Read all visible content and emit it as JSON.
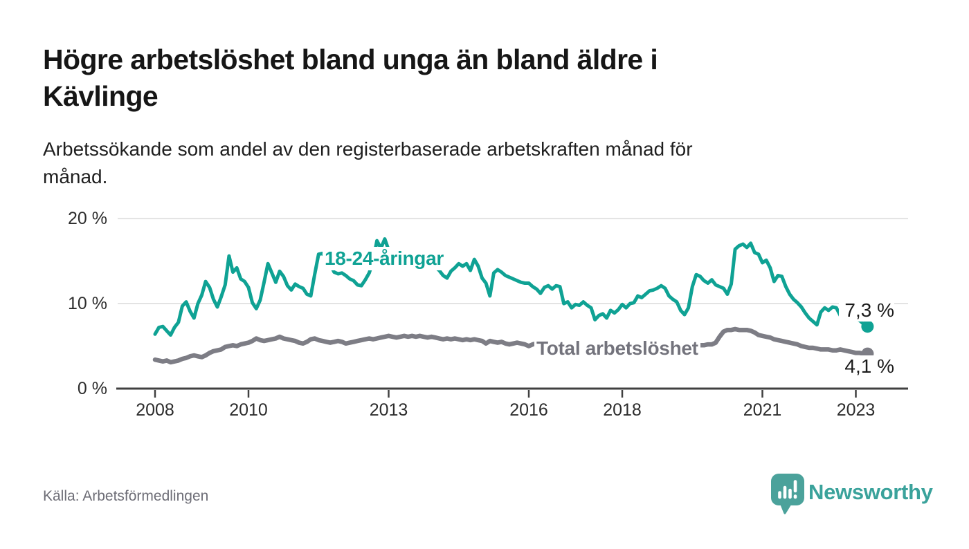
{
  "header": {
    "title_lines": [
      "Högre arbetslöshet bland unga än bland äldre i",
      "Kävlinge"
    ],
    "subtitle_lines": [
      "Arbetssökande som andel av den registerbaserade arbetskraften månad för",
      "månad."
    ]
  },
  "footer": {
    "source": "Källa: Arbetsförmedlingen",
    "brand_name": "Newsworthy"
  },
  "colors": {
    "youth_line": "#0fa294",
    "total_line": "#7d7d85",
    "total_label": "#73737c",
    "grid": "#e3e3e3",
    "axis": "#404040",
    "logo": "#4ba29b"
  },
  "chart_data": {
    "type": "line",
    "title": "Högre arbetslöshet bland unga än bland äldre i Kävlinge",
    "subtitle": "Arbetssökande som andel av den registerbaserade arbetskraften månad för månad.",
    "source": "Källa: Arbetsförmedlingen",
    "unit": "%",
    "x_start": "2008-01",
    "x_end": "2023-04",
    "x_interval": "monthly",
    "x_ticks": [
      2008,
      2010,
      2013,
      2016,
      2018,
      2021,
      2023
    ],
    "y_ticks": [
      {
        "value": 0,
        "label": "0 %"
      },
      {
        "value": 10,
        "label": "10 %"
      },
      {
        "value": 20,
        "label": "20 %"
      }
    ],
    "ylim": [
      0,
      21.5
    ],
    "grid": "horizontal",
    "legend_position": "inline-labels",
    "series": [
      {
        "name": "18-24-åringar",
        "color": "#0fa294",
        "end_label": "7,3 %",
        "end_value": 7.3,
        "values": [
          6.4,
          7.2,
          7.3,
          6.8,
          6.3,
          7.2,
          7.8,
          9.7,
          10.2,
          9.1,
          8.3,
          10.0,
          11.0,
          12.6,
          11.9,
          10.5,
          9.6,
          10.8,
          12.2,
          15.6,
          13.7,
          14.2,
          12.9,
          12.6,
          11.9,
          10.1,
          9.4,
          10.4,
          12.5,
          14.7,
          13.6,
          12.5,
          13.8,
          13.2,
          12.1,
          11.6,
          12.3,
          12.0,
          11.8,
          11.1,
          10.9,
          13.4,
          15.8,
          15.9,
          15.4,
          14.6,
          13.7,
          13.5,
          13.6,
          13.3,
          12.9,
          12.7,
          12.2,
          12.1,
          12.8,
          13.6,
          15.0,
          17.4,
          16.5,
          17.6,
          16.3,
          16.0,
          15.7,
          16.2,
          15.6,
          15.8,
          15.3,
          14.8,
          15.0,
          14.6,
          15.1,
          14.5,
          14.3,
          13.9,
          13.3,
          13.0,
          13.8,
          14.2,
          14.7,
          14.4,
          14.7,
          13.9,
          15.2,
          14.4,
          13.0,
          12.4,
          10.9,
          13.6,
          14.0,
          13.7,
          13.3,
          13.1,
          12.9,
          12.7,
          12.5,
          12.4,
          12.4,
          12.0,
          11.7,
          11.2,
          11.9,
          12.1,
          11.7,
          12.1,
          12.0,
          10.0,
          10.2,
          9.5,
          9.9,
          9.8,
          10.2,
          9.8,
          9.5,
          8.1,
          8.6,
          8.8,
          8.3,
          9.2,
          8.9,
          9.3,
          9.9,
          9.5,
          10.0,
          10.1,
          10.9,
          10.7,
          11.1,
          11.5,
          11.6,
          11.8,
          12.1,
          11.8,
          10.9,
          10.5,
          10.2,
          9.2,
          8.7,
          9.5,
          12.0,
          13.4,
          13.2,
          12.7,
          12.4,
          12.8,
          12.2,
          12.0,
          11.8,
          11.1,
          12.3,
          16.4,
          16.8,
          17.0,
          16.6,
          17.1,
          16.0,
          15.8,
          14.8,
          15.1,
          14.2,
          12.6,
          13.3,
          13.2,
          12.0,
          11.1,
          10.5,
          10.1,
          9.6,
          8.9,
          8.3,
          7.9,
          7.5,
          9.0,
          9.5,
          9.2,
          9.6,
          9.5,
          8.6,
          8.7,
          8.6,
          8.3,
          8.2,
          8.0,
          7.6,
          7.3
        ]
      },
      {
        "name": "Total arbetslöshet",
        "color": "#7d7d85",
        "end_label": "4,1 %",
        "end_value": 4.1,
        "values": [
          3.4,
          3.3,
          3.2,
          3.3,
          3.1,
          3.2,
          3.3,
          3.5,
          3.6,
          3.8,
          3.9,
          3.8,
          3.7,
          3.9,
          4.2,
          4.4,
          4.5,
          4.6,
          4.9,
          5.0,
          5.1,
          5.0,
          5.2,
          5.3,
          5.4,
          5.6,
          5.9,
          5.7,
          5.6,
          5.7,
          5.8,
          5.9,
          6.1,
          5.9,
          5.8,
          5.7,
          5.6,
          5.4,
          5.3,
          5.5,
          5.8,
          5.9,
          5.7,
          5.6,
          5.5,
          5.4,
          5.5,
          5.6,
          5.5,
          5.3,
          5.4,
          5.5,
          5.6,
          5.7,
          5.8,
          5.9,
          5.8,
          5.9,
          6.0,
          6.1,
          6.2,
          6.1,
          6.0,
          6.1,
          6.2,
          6.1,
          6.2,
          6.1,
          6.2,
          6.1,
          6.0,
          6.1,
          6.0,
          5.9,
          5.8,
          5.9,
          5.8,
          5.9,
          5.8,
          5.7,
          5.8,
          5.7,
          5.8,
          5.7,
          5.6,
          5.3,
          5.6,
          5.5,
          5.4,
          5.5,
          5.3,
          5.2,
          5.3,
          5.4,
          5.3,
          5.2,
          5.0,
          5.2,
          5.3,
          5.2,
          5.1,
          5.2,
          5.0,
          4.9,
          5.0,
          5.1,
          5.0,
          4.9,
          5.0,
          4.9,
          4.9,
          4.8,
          4.8,
          4.9,
          4.9,
          5.0,
          5.0,
          4.9,
          4.9,
          5.0,
          5.0,
          5.1,
          5.0,
          5.0,
          5.1,
          5.0,
          5.1,
          5.0,
          5.0,
          4.9,
          4.9,
          4.8,
          4.8,
          4.9,
          4.9,
          5.0,
          5.1,
          5.1,
          5.0,
          5.0,
          5.1,
          5.1,
          5.2,
          5.2,
          5.4,
          6.1,
          6.7,
          6.9,
          6.9,
          7.0,
          6.9,
          6.9,
          6.9,
          6.8,
          6.6,
          6.3,
          6.2,
          6.1,
          6.0,
          5.8,
          5.7,
          5.6,
          5.5,
          5.4,
          5.3,
          5.2,
          5.0,
          4.9,
          4.8,
          4.8,
          4.7,
          4.6,
          4.6,
          4.6,
          4.5,
          4.5,
          4.6,
          4.5,
          4.4,
          4.3,
          4.2,
          4.2,
          4.1,
          4.1
        ]
      }
    ]
  }
}
